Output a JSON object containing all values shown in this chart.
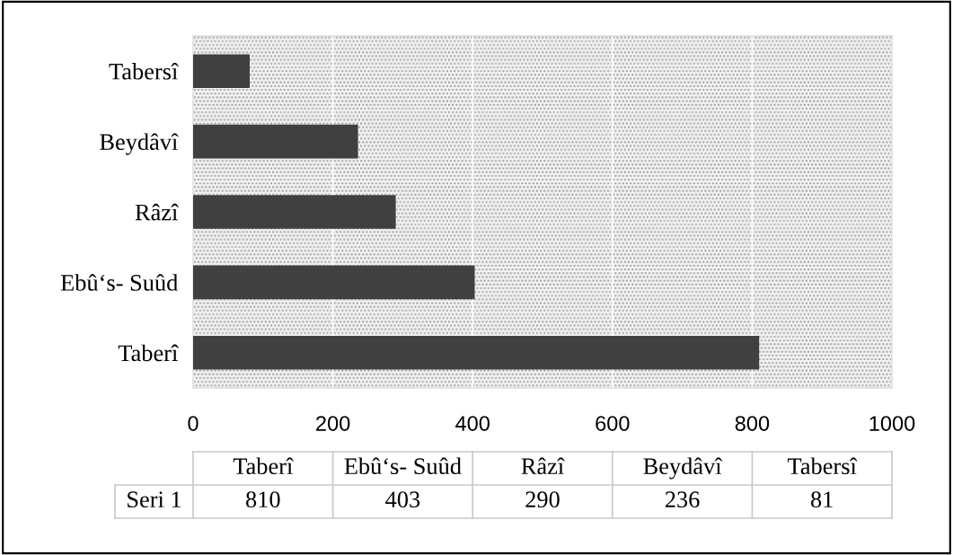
{
  "chart_data": [
    {
      "type": "bar",
      "orientation": "horizontal",
      "categories": [
        "Tabersî",
        "Beydâvî",
        "Râzî",
        "Ebû‘s- Suûd",
        "Taberî"
      ],
      "series": [
        {
          "color": "#404040",
          "values": [
            81,
            236,
            290,
            403,
            810
          ]
        }
      ],
      "xlim": [
        0,
        1000
      ],
      "xticks": [
        0,
        200,
        400,
        600,
        800,
        1000
      ],
      "grid": "x"
    },
    {
      "type": "other",
      "categories": [
        "Taberî",
        "Ebû‘s- Suûd",
        "Râzî",
        "Beydâvî",
        "Tabersî"
      ],
      "series": [
        {
          "name": "Seri 1",
          "values": [
            810,
            403,
            290,
            236,
            81
          ]
        }
      ],
      "data_labels": true
    }
  ]
}
